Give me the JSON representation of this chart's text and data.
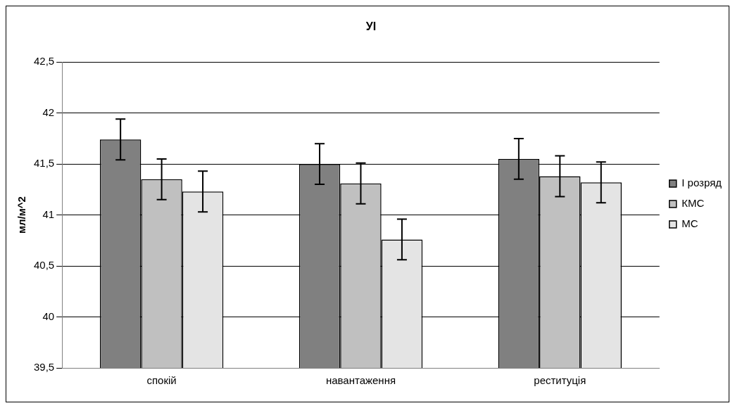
{
  "chart_data": {
    "type": "bar",
    "title": "УІ",
    "ylabel": "мл/м^2",
    "categories": [
      "спокій",
      "навантаження",
      "реституція"
    ],
    "series": [
      {
        "name": "І розряд",
        "color": "#808080",
        "values": [
          41.74,
          41.5,
          41.55
        ],
        "errors": [
          0.2,
          0.2,
          0.2
        ]
      },
      {
        "name": "КМС",
        "color": "#c0c0c0",
        "values": [
          41.35,
          41.31,
          41.38
        ],
        "errors": [
          0.2,
          0.2,
          0.2
        ]
      },
      {
        "name": "МС",
        "color": "#e4e4e4",
        "values": [
          41.23,
          40.76,
          41.32
        ],
        "errors": [
          0.2,
          0.2,
          0.2
        ]
      }
    ],
    "ylim": [
      39.5,
      42.5
    ],
    "yticks": [
      {
        "value": 39.5,
        "label": "39,5"
      },
      40,
      {
        "value": 40.5,
        "label": "40,5"
      },
      41,
      {
        "value": 41.5,
        "label": "41,5"
      },
      42,
      {
        "value": 42.5,
        "label": "42,5"
      }
    ],
    "grid": "y",
    "legend": "right"
  }
}
